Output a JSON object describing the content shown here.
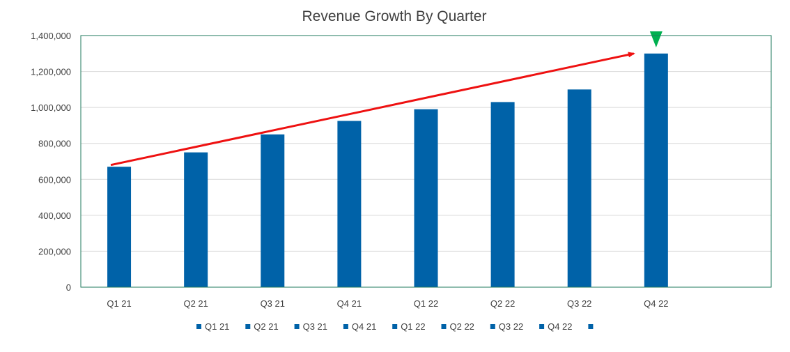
{
  "chart_data": {
    "type": "bar",
    "title": "Revenue Growth By Quarter",
    "xlabel": "",
    "ylabel": "",
    "categories": [
      "Q1 21",
      "Q2 21",
      "Q3 21",
      "Q4 21",
      "Q1 22",
      "Q2 22",
      "Q3 22",
      "Q4 22",
      ""
    ],
    "values": [
      670000,
      750000,
      850000,
      925000,
      990000,
      1030000,
      1100000,
      1300000,
      null
    ],
    "ylim": [
      0,
      1400000
    ],
    "yticks": [
      0,
      200000,
      400000,
      600000,
      800000,
      1000000,
      1200000,
      1400000
    ],
    "ytick_labels": [
      "0",
      "200,000",
      "400,000",
      "600,000",
      "800,000",
      "1,000,000",
      "1,200,000",
      "1,400,000"
    ],
    "grid": "horizontal",
    "legend_position": "bottom",
    "legend_entries": [
      "Q1 21",
      "Q2 21",
      "Q3 21",
      "Q4 21",
      "Q1 22",
      "Q2 22",
      "Q3 22",
      "Q4 22",
      ""
    ],
    "annotations": [
      {
        "type": "trend-arrow",
        "from": {
          "x": "Q1 21",
          "y": 680000
        },
        "to": {
          "x": "Q4 22",
          "y": 1300000
        }
      },
      {
        "type": "marker-triangle",
        "at": "Q4 22"
      }
    ],
    "colors": {
      "bar": "#0062a8",
      "grid": "#d9d9d9",
      "plot_border": "#1f7a5c",
      "arrow": "#ee1111",
      "marker": "#00b050",
      "text": "#404040"
    }
  }
}
